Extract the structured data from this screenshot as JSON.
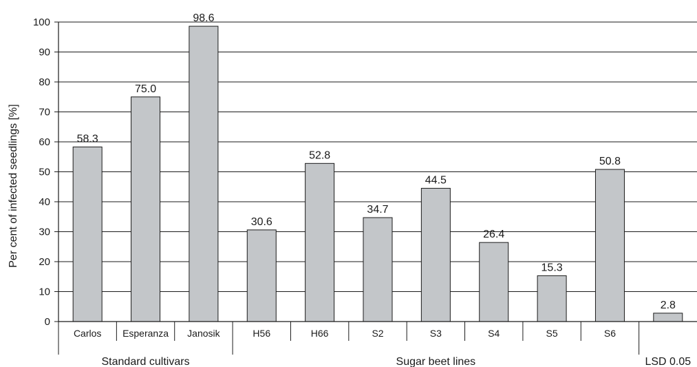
{
  "chart_data": {
    "type": "bar",
    "ylabel": "Per cent of infected seedlings [%]",
    "ylim": [
      0,
      100
    ],
    "yticks": [
      0,
      10,
      20,
      30,
      40,
      50,
      60,
      70,
      80,
      90,
      100
    ],
    "grid": true,
    "bar_color": "#c3c6c9",
    "categories": [
      "Carlos",
      "Esperanza",
      "Janosik",
      "H56",
      "H66",
      "S2",
      "S3",
      "S4",
      "S5",
      "S6",
      ""
    ],
    "values": [
      58.3,
      75.0,
      98.6,
      30.6,
      52.8,
      34.7,
      44.5,
      26.4,
      15.3,
      50.8,
      2.8
    ],
    "value_labels": [
      "58.3",
      "75.0",
      "98.6",
      "30.6",
      "52.8",
      "34.7",
      "44.5",
      "26.4",
      "15.3",
      "50.8",
      "2.8"
    ],
    "groups": [
      {
        "label": "Standard cultivars",
        "categories": [
          "Carlos",
          "Esperanza",
          "Janosik"
        ]
      },
      {
        "label": "Sugar beet lines",
        "categories": [
          "H56",
          "H66",
          "S2",
          "S3",
          "S4",
          "S5",
          "S6"
        ]
      },
      {
        "label": "LSD 0.05",
        "categories": [
          ""
        ]
      }
    ]
  }
}
